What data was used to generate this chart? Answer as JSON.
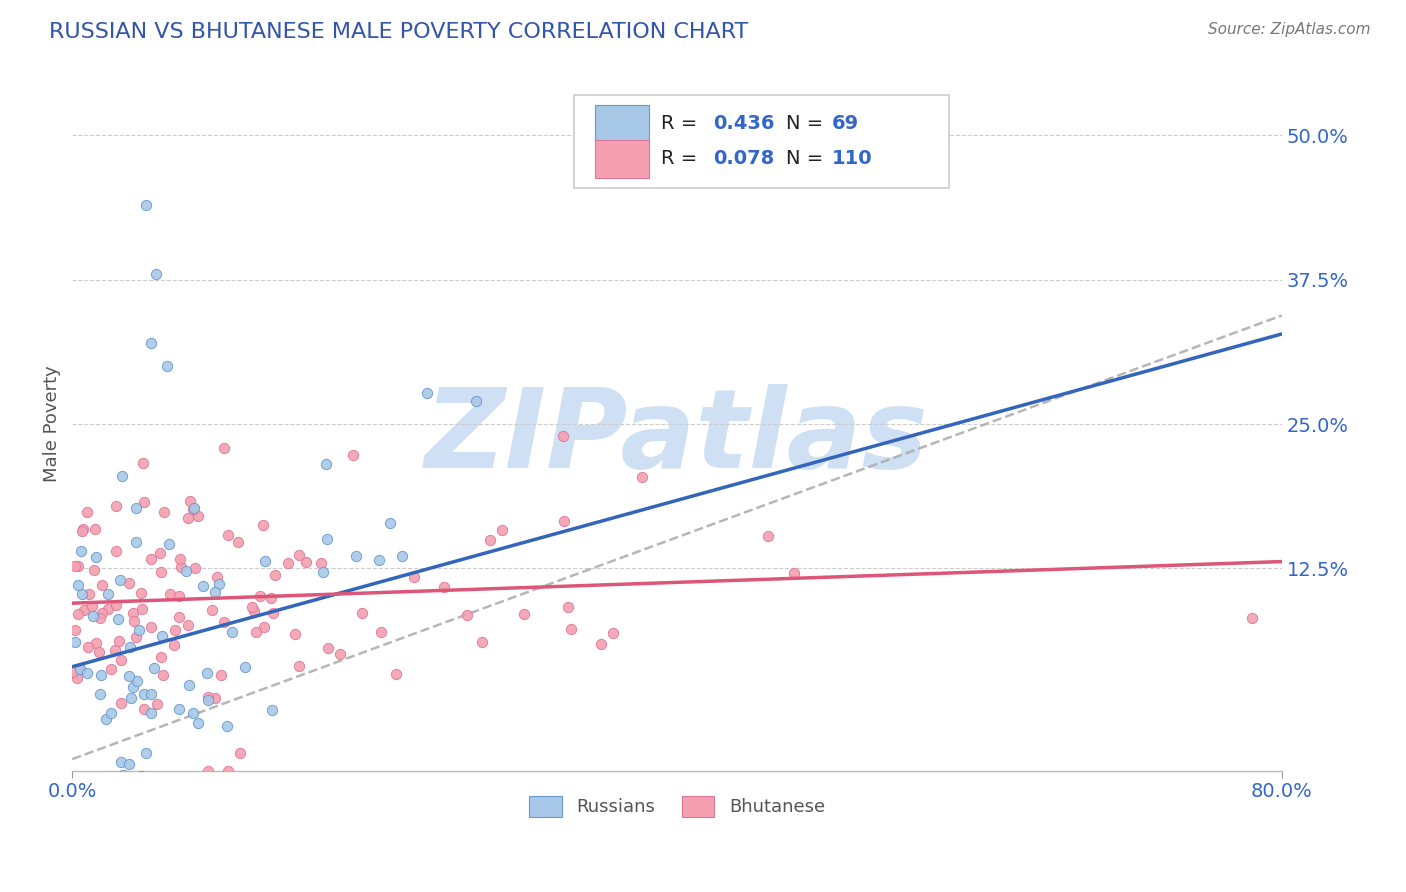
{
  "title": "RUSSIAN VS BHUTANESE MALE POVERTY CORRELATION CHART",
  "source": "Source: ZipAtlas.com",
  "ylabel": "Male Poverty",
  "xlim": [
    0.0,
    0.8
  ],
  "ylim": [
    -0.05,
    0.55
  ],
  "yticks": [
    0.125,
    0.25,
    0.375,
    0.5
  ],
  "ytick_labels": [
    "12.5%",
    "25.0%",
    "37.5%",
    "50.0%"
  ],
  "xticks": [
    0.0,
    0.8
  ],
  "xtick_labels": [
    "0.0%",
    "80.0%"
  ],
  "russian_R": 0.436,
  "russian_N": 69,
  "bhutanese_R": 0.078,
  "bhutanese_N": 110,
  "russian_color": "#a8c8e8",
  "bhutanese_color": "#f4a0b0",
  "russian_edge_color": "#6699cc",
  "bhutanese_edge_color": "#dd7799",
  "russian_line_color": "#3366bb",
  "bhutanese_line_color": "#dd5577",
  "dashed_line_color": "#aaaaaa",
  "title_color": "#3355aa",
  "axis_label_color": "#555555",
  "tick_label_color": "#3366cc",
  "source_color": "#777777",
  "legend_color": "#3366cc",
  "background_color": "#ffffff",
  "grid_color": "#cccccc",
  "watermark_color": "#d0e0f4",
  "watermark_text": "ZIPatlas",
  "russian_line_intercept": 0.04,
  "russian_line_slope": 0.36,
  "bhutanese_line_intercept": 0.095,
  "bhutanese_line_slope": 0.045,
  "dashed_line_intercept": -0.04,
  "dashed_line_slope": 0.48
}
